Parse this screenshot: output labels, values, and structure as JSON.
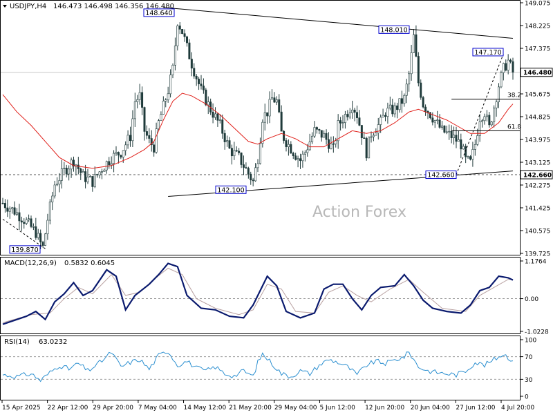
{
  "header": {
    "symbol": "USDJPY,H4",
    "ohlc": "146.473 146.498 146.356 146.480"
  },
  "watermark": "Action Forex",
  "colors": {
    "candle": "#1f3a3a",
    "ma": "#e0201a",
    "macd_main": "#0a1a6e",
    "macd_signal": "#b8a0a0",
    "rsi": "#2b8fd0",
    "trend": "#000000",
    "label_border": "#0000cc",
    "price_box": "#000000",
    "grid": "#c8c8c8"
  },
  "chart_data": [
    {
      "type": "candlestick",
      "title": "USDJPY,H4",
      "ylim": [
        139.725,
        149.075
      ],
      "y_ticks": [
        "149.075",
        "148.225",
        "147.375",
        "146.480",
        "145.675",
        "144.825",
        "143.975",
        "143.125",
        "142.275",
        "141.425",
        "140.575",
        "139.725"
      ],
      "current_price": "146.480",
      "support_level": "142.660",
      "annotations": [
        {
          "text": "148.640",
          "price": 148.64
        },
        {
          "text": "148.010",
          "price": 148.01
        },
        {
          "text": "147.170",
          "price": 147.17
        },
        {
          "text": "142.100",
          "price": 142.1
        },
        {
          "text": "142.660",
          "price": 142.66
        },
        {
          "text": "139.870",
          "price": 139.87
        }
      ],
      "fib_levels": [
        {
          "label": "38.2",
          "price": 145.48
        },
        {
          "label": "61.8",
          "price": 144.3
        }
      ],
      "close_path": [
        [
          0,
          141.6
        ],
        [
          5,
          141.3
        ],
        [
          10,
          140.9
        ],
        [
          14,
          140.5
        ],
        [
          16,
          140.1
        ],
        [
          17,
          139.95
        ],
        [
          19,
          141.0
        ],
        [
          22,
          142.3
        ],
        [
          26,
          142.8
        ],
        [
          30,
          143.2
        ],
        [
          34,
          142.6
        ],
        [
          38,
          142.4
        ],
        [
          42,
          142.9
        ],
        [
          46,
          143.3
        ],
        [
          50,
          143.5
        ],
        [
          54,
          144.1
        ],
        [
          56,
          145.4
        ],
        [
          58,
          145.6
        ],
        [
          60,
          144.3
        ],
        [
          62,
          143.9
        ],
        [
          64,
          143.7
        ],
        [
          66,
          144.6
        ],
        [
          70,
          145.8
        ],
        [
          72,
          146.6
        ],
        [
          74,
          148.4
        ],
        [
          76,
          148.0
        ],
        [
          80,
          146.8
        ],
        [
          84,
          145.8
        ],
        [
          88,
          145.1
        ],
        [
          92,
          144.5
        ],
        [
          96,
          143.6
        ],
        [
          100,
          143.3
        ],
        [
          104,
          142.7
        ],
        [
          106,
          142.4
        ],
        [
          108,
          143.3
        ],
        [
          110,
          144.8
        ],
        [
          112,
          145.0
        ],
        [
          114,
          145.5
        ],
        [
          116,
          145.4
        ],
        [
          118,
          144.2
        ],
        [
          120,
          143.9
        ],
        [
          124,
          143.4
        ],
        [
          126,
          143.2
        ],
        [
          128,
          143.5
        ],
        [
          130,
          143.9
        ],
        [
          132,
          144.3
        ],
        [
          136,
          144.1
        ],
        [
          140,
          143.6
        ],
        [
          142,
          144.5
        ],
        [
          146,
          145.0
        ],
        [
          148,
          145.3
        ],
        [
          150,
          144.9
        ],
        [
          152,
          144.2
        ],
        [
          154,
          143.5
        ],
        [
          156,
          144.2
        ],
        [
          160,
          144.6
        ],
        [
          162,
          145.0
        ],
        [
          166,
          145.1
        ],
        [
          170,
          145.5
        ],
        [
          172,
          146.4
        ],
        [
          174,
          147.8
        ],
        [
          176,
          146.1
        ],
        [
          178,
          145.3
        ],
        [
          182,
          144.8
        ],
        [
          186,
          144.3
        ],
        [
          190,
          144.1
        ],
        [
          194,
          143.8
        ],
        [
          196,
          143.2
        ],
        [
          198,
          143.1
        ],
        [
          200,
          143.8
        ],
        [
          202,
          144.8
        ],
        [
          204,
          145.0
        ],
        [
          206,
          144.4
        ],
        [
          208,
          145.2
        ],
        [
          210,
          146.0
        ],
        [
          212,
          146.6
        ],
        [
          214,
          146.9
        ],
        [
          216,
          146.48
        ]
      ],
      "ma_path": [
        [
          0,
          145.65
        ],
        [
          6,
          145.0
        ],
        [
          12,
          144.5
        ],
        [
          18,
          143.9
        ],
        [
          24,
          143.3
        ],
        [
          30,
          143.0
        ],
        [
          38,
          142.9
        ],
        [
          46,
          143.0
        ],
        [
          54,
          143.3
        ],
        [
          60,
          143.6
        ],
        [
          64,
          143.9
        ],
        [
          68,
          144.7
        ],
        [
          72,
          145.4
        ],
        [
          76,
          145.7
        ],
        [
          80,
          145.6
        ],
        [
          86,
          145.3
        ],
        [
          92,
          144.9
        ],
        [
          98,
          144.4
        ],
        [
          104,
          143.9
        ],
        [
          108,
          143.8
        ],
        [
          112,
          144.0
        ],
        [
          118,
          144.2
        ],
        [
          124,
          144.0
        ],
        [
          130,
          143.7
        ],
        [
          136,
          143.7
        ],
        [
          142,
          144.0
        ],
        [
          148,
          144.3
        ],
        [
          154,
          144.2
        ],
        [
          160,
          144.3
        ],
        [
          166,
          144.6
        ],
        [
          172,
          145.0
        ],
        [
          176,
          145.1
        ],
        [
          182,
          144.9
        ],
        [
          188,
          144.7
        ],
        [
          194,
          144.4
        ],
        [
          198,
          144.2
        ],
        [
          204,
          144.2
        ],
        [
          210,
          144.6
        ],
        [
          214,
          145.1
        ],
        [
          216,
          145.3
        ]
      ],
      "trendlines": [
        {
          "from": [
            68,
            148.9
          ],
          "to": [
            216,
            147.75
          ]
        },
        {
          "from": [
            70,
            141.85
          ],
          "to": [
            216,
            142.8
          ]
        },
        {
          "from": [
            0,
            141.0
          ],
          "to": [
            18,
            139.9
          ],
          "dashed": true
        },
        {
          "from": [
            192,
            142.66
          ],
          "to": [
            212,
            147.17
          ],
          "dashed": true
        }
      ]
    },
    {
      "type": "line",
      "title": "MACD(12,26,9)",
      "values_label": "0.5832 0.6045",
      "ylim": [
        -1.0228,
        1.1764
      ],
      "y_ticks": [
        "1.1764",
        "0.00",
        "-1.0228"
      ],
      "macd_path": [
        [
          0,
          -0.8
        ],
        [
          10,
          -0.55
        ],
        [
          14,
          -0.4
        ],
        [
          18,
          -0.65
        ],
        [
          22,
          -0.1
        ],
        [
          26,
          0.15
        ],
        [
          30,
          0.5
        ],
        [
          34,
          0.1
        ],
        [
          38,
          0.25
        ],
        [
          44,
          0.9
        ],
        [
          48,
          0.7
        ],
        [
          52,
          -0.35
        ],
        [
          56,
          0.1
        ],
        [
          62,
          0.45
        ],
        [
          66,
          0.75
        ],
        [
          70,
          1.1
        ],
        [
          74,
          1.0
        ],
        [
          78,
          0.1
        ],
        [
          84,
          -0.3
        ],
        [
          90,
          -0.35
        ],
        [
          96,
          -0.55
        ],
        [
          102,
          -0.6
        ],
        [
          106,
          -0.2
        ],
        [
          110,
          0.4
        ],
        [
          112,
          0.7
        ],
        [
          116,
          0.4
        ],
        [
          120,
          -0.4
        ],
        [
          126,
          -0.6
        ],
        [
          132,
          -0.45
        ],
        [
          136,
          0.3
        ],
        [
          140,
          0.45
        ],
        [
          144,
          0.45
        ],
        [
          148,
          0.0
        ],
        [
          152,
          -0.35
        ],
        [
          156,
          0.1
        ],
        [
          160,
          0.35
        ],
        [
          166,
          0.4
        ],
        [
          170,
          0.75
        ],
        [
          174,
          0.4
        ],
        [
          178,
          -0.05
        ],
        [
          182,
          -0.3
        ],
        [
          188,
          -0.4
        ],
        [
          194,
          -0.45
        ],
        [
          198,
          -0.2
        ],
        [
          202,
          0.25
        ],
        [
          206,
          0.35
        ],
        [
          210,
          0.7
        ],
        [
          214,
          0.65
        ],
        [
          216,
          0.58
        ]
      ],
      "signal_path": [
        [
          0,
          -0.75
        ],
        [
          12,
          -0.5
        ],
        [
          20,
          -0.45
        ],
        [
          26,
          0.0
        ],
        [
          32,
          0.35
        ],
        [
          38,
          0.15
        ],
        [
          46,
          0.75
        ],
        [
          52,
          0.1
        ],
        [
          58,
          0.2
        ],
        [
          64,
          0.6
        ],
        [
          70,
          0.95
        ],
        [
          76,
          0.75
        ],
        [
          82,
          0.0
        ],
        [
          90,
          -0.3
        ],
        [
          100,
          -0.5
        ],
        [
          106,
          -0.35
        ],
        [
          112,
          0.45
        ],
        [
          118,
          0.3
        ],
        [
          124,
          -0.4
        ],
        [
          132,
          -0.45
        ],
        [
          138,
          0.2
        ],
        [
          144,
          0.4
        ],
        [
          150,
          0.1
        ],
        [
          156,
          -0.1
        ],
        [
          164,
          0.3
        ],
        [
          172,
          0.6
        ],
        [
          178,
          0.2
        ],
        [
          186,
          -0.3
        ],
        [
          196,
          -0.4
        ],
        [
          202,
          0.1
        ],
        [
          208,
          0.35
        ],
        [
          214,
          0.6
        ],
        [
          216,
          0.6045
        ]
      ]
    },
    {
      "type": "line",
      "title": "RSI(14)",
      "values_label": "63.0232",
      "ylim": [
        0,
        100
      ],
      "y_ticks": [
        "100",
        "70",
        "30",
        "0"
      ],
      "rsi_path": [
        [
          0,
          38
        ],
        [
          6,
          35
        ],
        [
          12,
          40
        ],
        [
          16,
          28
        ],
        [
          20,
          42
        ],
        [
          24,
          55
        ],
        [
          28,
          48
        ],
        [
          32,
          58
        ],
        [
          36,
          45
        ],
        [
          40,
          56
        ],
        [
          44,
          70
        ],
        [
          46,
          78
        ],
        [
          50,
          52
        ],
        [
          54,
          60
        ],
        [
          58,
          65
        ],
        [
          62,
          48
        ],
        [
          66,
          72
        ],
        [
          70,
          80
        ],
        [
          74,
          55
        ],
        [
          78,
          62
        ],
        [
          82,
          50
        ],
        [
          86,
          45
        ],
        [
          90,
          52
        ],
        [
          94,
          40
        ],
        [
          98,
          36
        ],
        [
          102,
          45
        ],
        [
          106,
          35
        ],
        [
          108,
          60
        ],
        [
          110,
          75
        ],
        [
          114,
          58
        ],
        [
          118,
          40
        ],
        [
          122,
          35
        ],
        [
          126,
          45
        ],
        [
          130,
          40
        ],
        [
          134,
          55
        ],
        [
          138,
          65
        ],
        [
          142,
          60
        ],
        [
          146,
          52
        ],
        [
          150,
          38
        ],
        [
          154,
          55
        ],
        [
          158,
          62
        ],
        [
          162,
          58
        ],
        [
          166,
          64
        ],
        [
          170,
          70
        ],
        [
          172,
          78
        ],
        [
          176,
          52
        ],
        [
          180,
          45
        ],
        [
          184,
          42
        ],
        [
          188,
          40
        ],
        [
          192,
          38
        ],
        [
          196,
          45
        ],
        [
          200,
          60
        ],
        [
          204,
          55
        ],
        [
          208,
          65
        ],
        [
          212,
          75
        ],
        [
          216,
          63
        ]
      ]
    }
  ],
  "x_axis": {
    "labels": [
      "15 Apr 2025",
      "22 Apr 12:00",
      "29 Apr 20:00",
      "7 May 04:00",
      "14 May 12:00",
      "21 May 20:00",
      "29 May 04:00",
      "5 Jun 12:00",
      "12 Jun 20:00",
      "20 Jun 04:00",
      "27 Jun 12:00",
      "4 Jul 20:00"
    ]
  }
}
